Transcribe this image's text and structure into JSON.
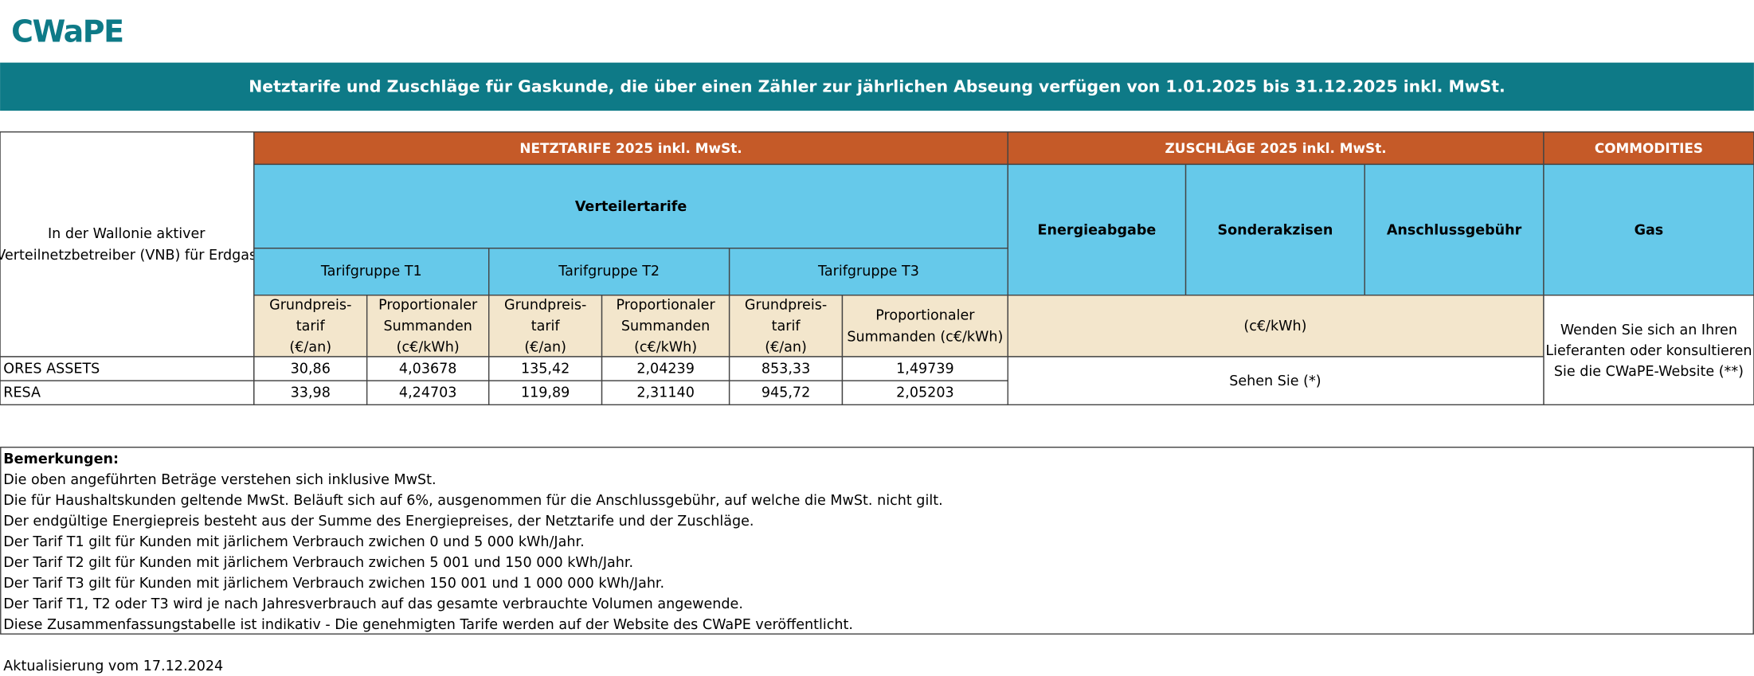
{
  "logo": "CWaPE",
  "banner": "Netztarife und Zuschläge für Gaskunde, die über einen Zähler zur jährlichen Abseung verfügen von 1.01.2025 bis 31.12.2025 inkl. MwSt.",
  "table": {
    "row_header": [
      "In der Wallonie aktiver",
      "Verteilnetzbetreiber (VNB) für Erdgas"
    ],
    "groups": [
      "NETZTARIFE 2025 inkl. MwSt.",
      "ZUSCHLÄGE 2025 inkl. MwSt.",
      "COMMODITIES"
    ],
    "distribution": "Verteilertarife",
    "surcharges": [
      "Energieabgabe",
      "Sonderakzisen",
      "Anschlussgebühr"
    ],
    "commodity": "Gas",
    "tariff_groups": [
      "Tarifgruppe T1",
      "Tarifgruppe T2",
      "Tarifgruppe T3"
    ],
    "unit_columns": [
      [
        "Grundpreis-",
        "tarif",
        "(€/an)"
      ],
      [
        "Proportionaler",
        "Summanden",
        "(c€/kWh)"
      ],
      [
        "Grundpreis-",
        "tarif",
        "(€/an)"
      ],
      [
        "Proportionaler",
        "Summanden",
        "(c€/kWh)"
      ],
      [
        "Grundpreis-",
        "tarif",
        "(€/an)"
      ],
      [
        "Proportionaler",
        "Summanden (c€/kWh)"
      ]
    ],
    "surcharge_unit": "(c€/kWh)",
    "surcharge_note": "Sehen Sie (*)",
    "commodity_note": [
      "Wenden Sie sich an Ihren",
      "Lieferanten oder konsultieren",
      "Sie die CWaPE-Website (**)"
    ],
    "rows": [
      [
        "ORES ASSETS",
        "30,86",
        "4,03678",
        "135,42",
        "2,04239",
        "853,33",
        "1,49739"
      ],
      [
        "RESA",
        "33,98",
        "4,24703",
        "119,89",
        "2,31140",
        "945,72",
        "2,05203"
      ]
    ]
  },
  "remarks": {
    "title": "Bemerkungen:",
    "lines": [
      "Die oben angeführten Beträge verstehen sich inklusive MwSt.",
      "Die für Haushaltskunden geltende MwSt. Beläuft sich auf 6%, ausgenommen für die Anschlussgebühr, auf welche die MwSt. nicht gilt.",
      "Der endgültige Energiepreis besteht aus der Summe des Energiepreises, der Netztarife und der Zuschläge.",
      "Der Tarif T1 gilt für Kunden mit järlichem Verbrauch zwichen 0 und 5 000 kWh/Jahr.",
      "Der Tarif T2 gilt für Kunden mit järlichem Verbrauch zwichen 5 001 und 150 000 kWh/Jahr.",
      "Der Tarif T3 gilt für Kunden mit järlichem Verbrauch zwichen 150 001 und 1 000 000 kWh/Jahr.",
      "Der Tarif T1, T2 oder T3 wird je nach Jahresverbrauch auf das gesamte verbrauchte Volumen angewende.",
      "Diese Zusammenfassungstabelle ist indikativ - Die genehmigten Tarife werden auf der Website des CWaPE  veröffentlicht."
    ]
  },
  "update": "Aktualisierung vom 17.12.2024"
}
